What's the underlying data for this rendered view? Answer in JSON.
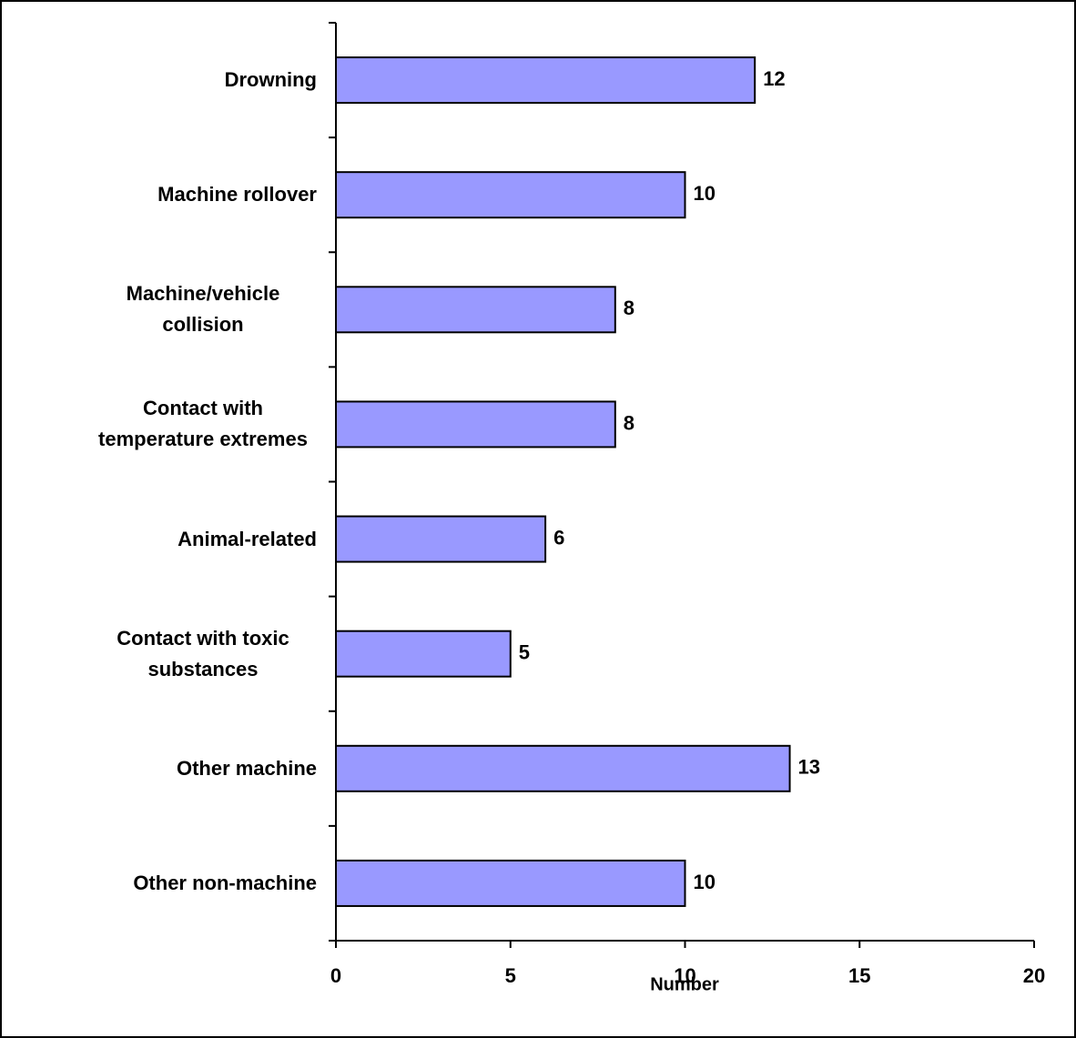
{
  "chart_data": {
    "type": "barh",
    "x_label": "Number",
    "categories": [
      "Drowning",
      "Machine rollover",
      "Machine/vehicle collision",
      "Contact with temperature extremes",
      "Animal-related",
      "Contact with toxic substances",
      "Other machine",
      "Other non-machine"
    ],
    "values": [
      12,
      10,
      8,
      8,
      6,
      5,
      13,
      10
    ],
    "color": "#9999ff",
    "xlim": [
      0,
      20
    ],
    "xticks": [
      0,
      5,
      10,
      15,
      20
    ],
    "grid": false
  }
}
